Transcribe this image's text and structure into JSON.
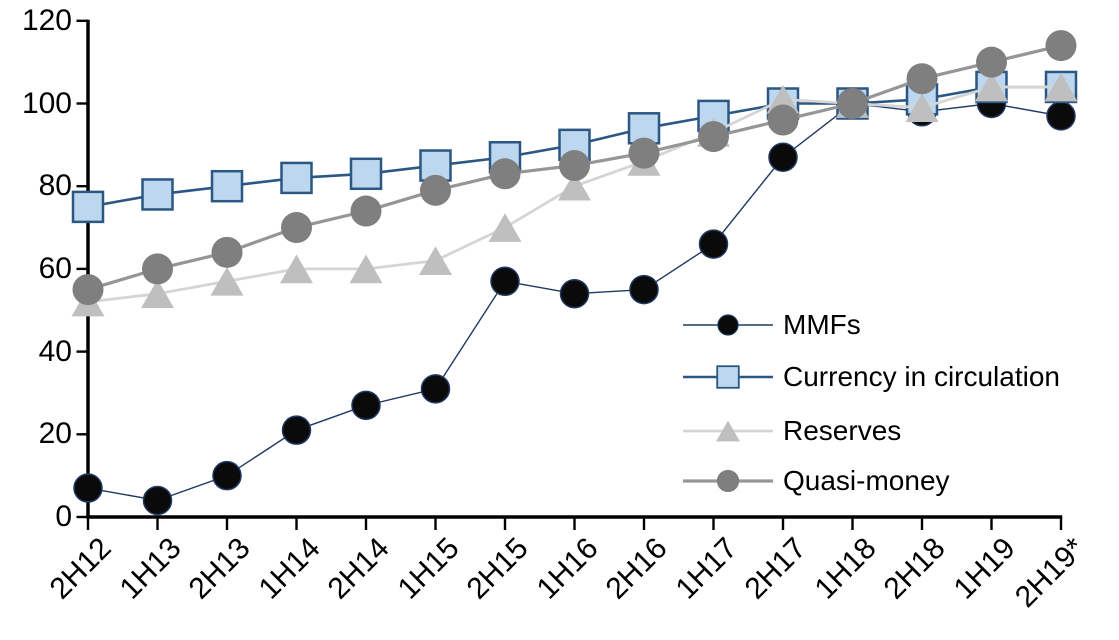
{
  "chart_data": {
    "type": "line",
    "title": "",
    "categories": [
      "2H12",
      "1H13",
      "2H13",
      "1H14",
      "2H14",
      "1H15",
      "2H15",
      "1H16",
      "2H16",
      "1H17",
      "2H17",
      "1H18",
      "2H18",
      "1H19",
      "2H19*"
    ],
    "series": [
      {
        "name": "MMFs",
        "marker": "circle",
        "marker_fill": "#0a0a0a",
        "marker_stroke": "#1f3864",
        "line_color": "#1f3864",
        "line_width": 1.4,
        "marker_size": 28,
        "values": [
          7,
          4,
          10,
          21,
          27,
          31,
          57,
          54,
          55,
          66,
          87,
          100,
          98,
          100,
          97
        ]
      },
      {
        "name": "Currency in circulation",
        "marker": "square",
        "marker_fill": "#bdd7ee",
        "marker_stroke": "#2a5783",
        "line_color": "#2a5783",
        "line_width": 2.6,
        "marker_size": 30,
        "values": [
          75,
          78,
          80,
          82,
          83,
          85,
          87,
          90,
          94,
          97,
          100,
          100,
          101,
          104,
          104
        ]
      },
      {
        "name": "Reserves",
        "marker": "triangle",
        "marker_fill": "#bfbfbf",
        "marker_stroke": "none",
        "line_color": "#d5d5d5",
        "line_width": 2.8,
        "marker_size": 33,
        "values": [
          52,
          54,
          57,
          60,
          60,
          62,
          70,
          80,
          86,
          93,
          101,
          100,
          99,
          104,
          104
        ]
      },
      {
        "name": "Quasi-money",
        "marker": "circle",
        "marker_fill": "#7f7f7f",
        "marker_stroke": "none",
        "line_color": "#969696",
        "line_width": 3.2,
        "marker_size": 31,
        "values": [
          55,
          60,
          64,
          70,
          74,
          79,
          83,
          85,
          88,
          92,
          96,
          100,
          106,
          110,
          114
        ]
      }
    ],
    "y_axis": {
      "min": 0,
      "max": 120,
      "step": 20,
      "ticks": [
        0,
        20,
        40,
        60,
        80,
        100,
        120
      ]
    },
    "x_axis": {
      "label_rotation": -45
    },
    "axis_color": "#000000",
    "grid": false,
    "legend_position": "inside-right"
  }
}
